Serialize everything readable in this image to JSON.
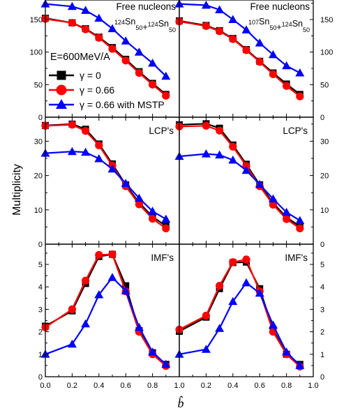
{
  "chart_data": {
    "type": "line",
    "ylabel": "Multiplicity",
    "xlabel": "b̂",
    "xlim": [
      0.0,
      1.0
    ],
    "x_ticks": [
      "0.0",
      "0.2",
      "0.4",
      "0.6",
      "0.8",
      "1.0"
    ],
    "energy_label": "E=600MeV/A",
    "series_info": [
      {
        "name": "γ = 0",
        "color": "#000000",
        "marker": "square"
      },
      {
        "name": "γ = 0.66",
        "color": "#ff0000",
        "marker": "circle"
      },
      {
        "name": "γ = 0.66 with MSTP",
        "color": "#0000ff",
        "marker": "triangle"
      }
    ],
    "x": [
      0.0,
      0.2,
      0.3,
      0.4,
      0.5,
      0.6,
      0.7,
      0.8,
      0.9
    ],
    "rows": [
      {
        "label": "Free nucleons",
        "ylim": [
          0,
          180
        ],
        "yticks": [
          0,
          50,
          100,
          150
        ],
        "panels": [
          {
            "system": {
              "m1": "124",
              "m2": "124",
              "z": "50",
              "el": "Sn",
              "plus": "+"
            },
            "series": [
              [
                152,
                145,
                136,
                123,
                107,
                89,
                70,
                52,
                35
              ],
              [
                151,
                145,
                135,
                122,
                105,
                87,
                68,
                50,
                33
              ],
              [
                174,
                170,
                164,
                152,
                136,
                117,
                100,
                83,
                63
              ]
            ]
          },
          {
            "system": {
              "m1": "107",
              "m2": "124",
              "z": "50",
              "el": "Sn",
              "plus": "+"
            },
            "series": [
              [
                148,
                141,
                133,
                121,
                104,
                86,
                68,
                51,
                35
              ],
              [
                147,
                140,
                132,
                120,
                103,
                85,
                66,
                48,
                32
              ],
              [
                174,
                172,
                165,
                150,
                134,
                114,
                96,
                79,
                68
              ]
            ]
          }
        ]
      },
      {
        "label": "LCP's",
        "ylim": [
          0,
          37
        ],
        "yticks": [
          0,
          10,
          20,
          30
        ],
        "panels": [
          {
            "series": [
              [
                34.6,
                35.0,
                33.5,
                29.2,
                23.4,
                17.3,
                12.1,
                8.0,
                5.3
              ],
              [
                34.5,
                34.8,
                33.0,
                28.8,
                22.9,
                16.9,
                11.6,
                7.4,
                4.6
              ],
              [
                26.5,
                27.0,
                26.8,
                24.9,
                21.9,
                17.7,
                13.4,
                9.6,
                7.3
              ]
            ]
          },
          {
            "series": [
              [
                34.8,
                35.1,
                33.8,
                28.9,
                23.3,
                17.3,
                12.0,
                7.8,
                5.2
              ],
              [
                34.3,
                34.5,
                33.1,
                28.4,
                22.8,
                16.9,
                11.5,
                7.3,
                4.6
              ],
              [
                25.6,
                26.3,
                26.0,
                24.5,
                21.5,
                17.4,
                13.2,
                9.3,
                6.9
              ]
            ]
          }
        ]
      },
      {
        "label": "IMF's",
        "ylim": [
          0,
          5.9
        ],
        "yticks": [
          0,
          1,
          2,
          3,
          4,
          5
        ],
        "panels": [
          {
            "series": [
              [
                2.25,
                2.93,
                4.15,
                5.35,
                5.45,
                4.05,
                2.05,
                1.07,
                0.55
              ],
              [
                2.2,
                3.0,
                4.28,
                5.42,
                5.45,
                3.8,
                2.0,
                1.0,
                0.48
              ],
              [
                1.0,
                1.45,
                2.35,
                3.65,
                4.42,
                3.82,
                2.2,
                1.1,
                0.55
              ]
            ]
          },
          {
            "series": [
              [
                2.02,
                2.65,
                3.92,
                5.08,
                5.1,
                3.92,
                2.1,
                1.0,
                0.55
              ],
              [
                2.1,
                2.72,
                4.05,
                5.1,
                5.22,
                3.8,
                2.0,
                1.0,
                0.45
              ],
              [
                1.0,
                1.22,
                2.15,
                3.35,
                4.18,
                3.72,
                2.3,
                1.1,
                0.5
              ]
            ]
          }
        ]
      }
    ]
  }
}
